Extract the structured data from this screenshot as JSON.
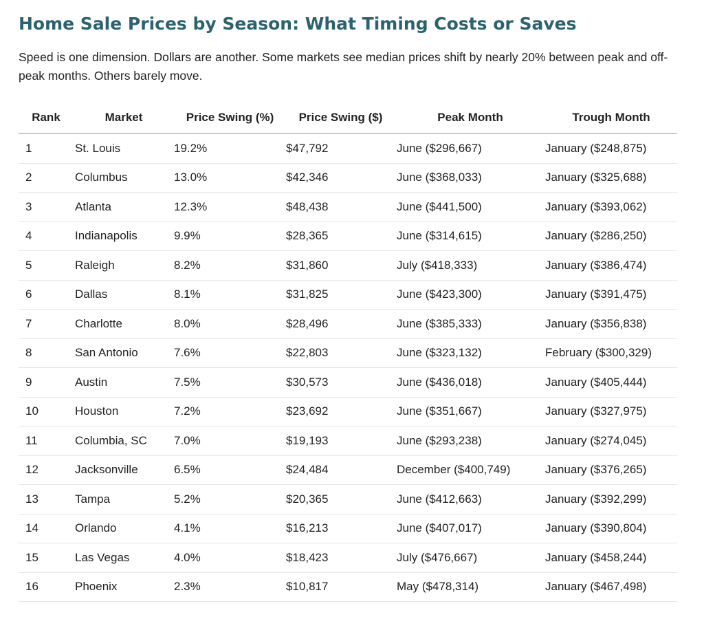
{
  "heading": {
    "title": "Home Sale Prices by Season: What Timing Costs or Saves",
    "intro": "Speed is one dimension. Dollars are another. Some markets see median prices shift by nearly 20% between peak and off-peak months. Others barely move."
  },
  "colors": {
    "title": "#2a6270",
    "text": "#222222",
    "header_rule": "#c8ccd0",
    "row_rule": "#e3e5e8"
  },
  "table": {
    "headers": [
      "Rank",
      "Market",
      "Price Swing (%)",
      "Price Swing ($)",
      "Peak Month",
      "Trough Month"
    ],
    "rows": [
      [
        "1",
        "St. Louis",
        "19.2%",
        "$47,792",
        "June ($296,667)",
        "January ($248,875)"
      ],
      [
        "2",
        "Columbus",
        "13.0%",
        "$42,346",
        "June ($368,033)",
        "January ($325,688)"
      ],
      [
        "3",
        "Atlanta",
        "12.3%",
        "$48,438",
        "June ($441,500)",
        "January ($393,062)"
      ],
      [
        "4",
        "Indianapolis",
        "9.9%",
        "$28,365",
        "June ($314,615)",
        "January ($286,250)"
      ],
      [
        "5",
        "Raleigh",
        "8.2%",
        "$31,860",
        "July ($418,333)",
        "January ($386,474)"
      ],
      [
        "6",
        "Dallas",
        "8.1%",
        "$31,825",
        "June ($423,300)",
        "January ($391,475)"
      ],
      [
        "7",
        "Charlotte",
        "8.0%",
        "$28,496",
        "June ($385,333)",
        "January ($356,838)"
      ],
      [
        "8",
        "San Antonio",
        "7.6%",
        "$22,803",
        "June ($323,132)",
        "February ($300,329)"
      ],
      [
        "9",
        "Austin",
        "7.5%",
        "$30,573",
        "June ($436,018)",
        "January ($405,444)"
      ],
      [
        "10",
        "Houston",
        "7.2%",
        "$23,692",
        "June ($351,667)",
        "January ($327,975)"
      ],
      [
        "11",
        "Columbia, SC",
        "7.0%",
        "$19,193",
        "June ($293,238)",
        "January ($274,045)"
      ],
      [
        "12",
        "Jacksonville",
        "6.5%",
        "$24,484",
        "December ($400,749)",
        "January ($376,265)"
      ],
      [
        "13",
        "Tampa",
        "5.2%",
        "$20,365",
        "June ($412,663)",
        "January ($392,299)"
      ],
      [
        "14",
        "Orlando",
        "4.1%",
        "$16,213",
        "June ($407,017)",
        "January ($390,804)"
      ],
      [
        "15",
        "Las Vegas",
        "4.0%",
        "$18,423",
        "July ($476,667)",
        "January ($458,244)"
      ],
      [
        "16",
        "Phoenix",
        "2.3%",
        "$10,817",
        "May ($478,314)",
        "January ($467,498)"
      ]
    ]
  }
}
